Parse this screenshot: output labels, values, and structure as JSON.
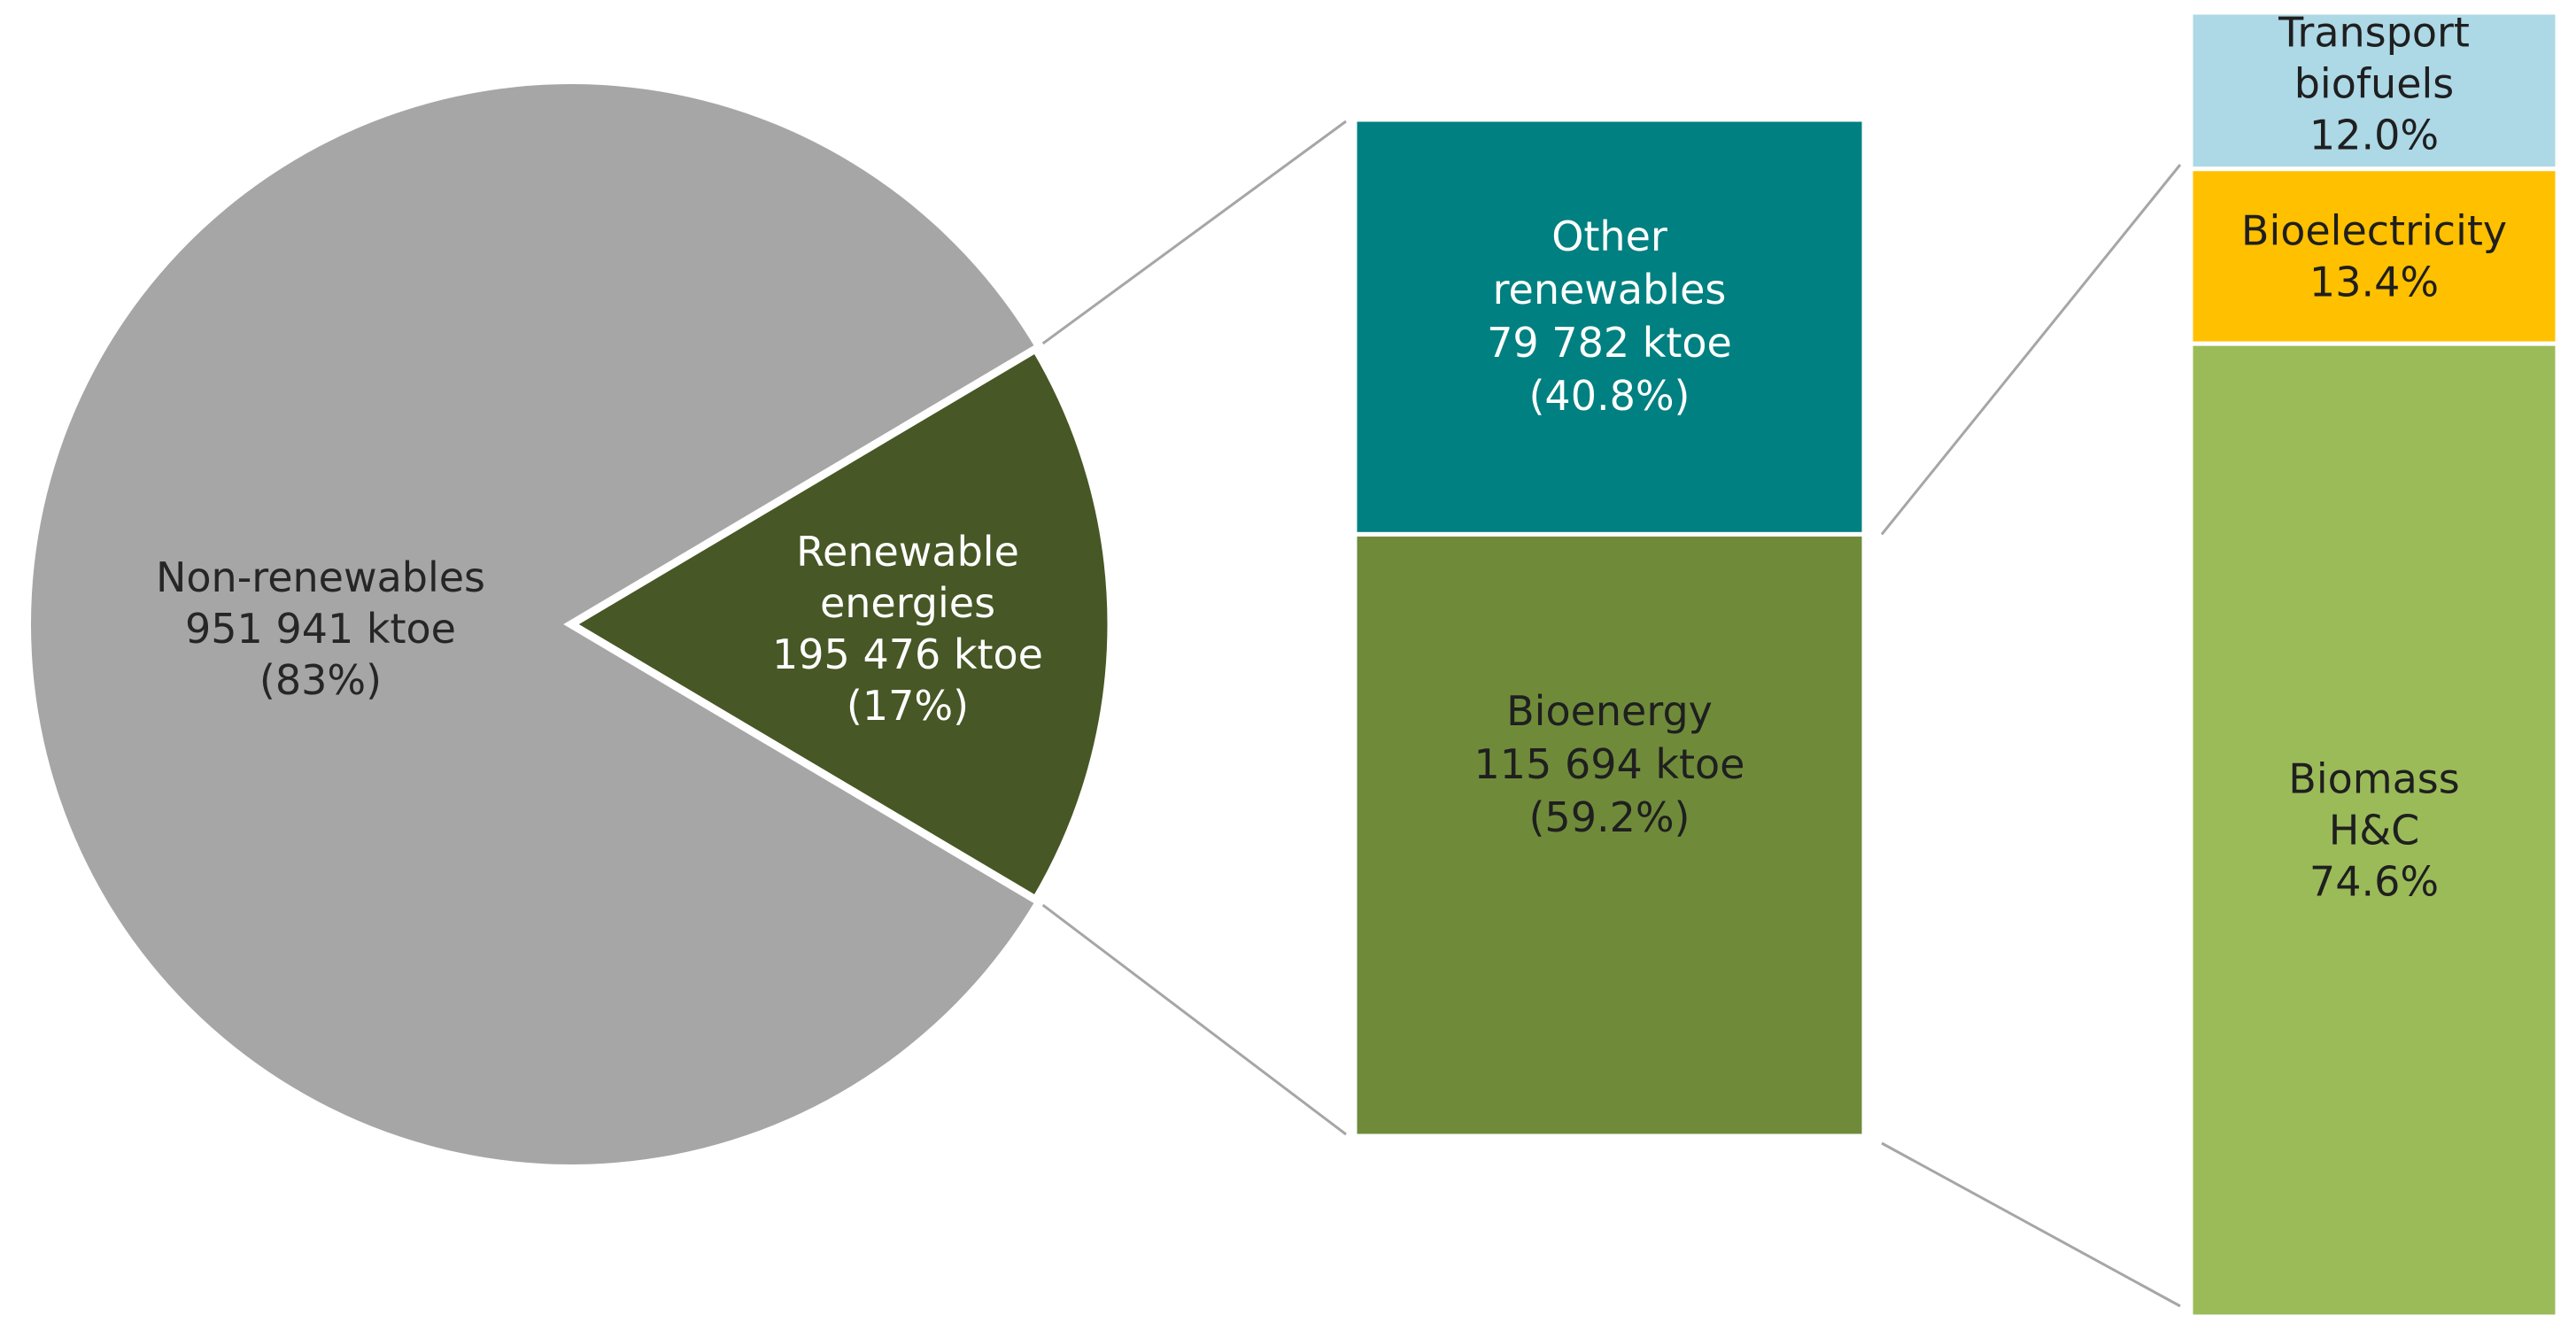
{
  "chart_data": [
    {
      "type": "pie",
      "unit": "ktoe",
      "slices": [
        {
          "label": "Non-renewables",
          "value": 951941,
          "value_text": "951 941 ktoe",
          "percent_text": "(83%)",
          "color": "#a6a6a6",
          "text_color": "#262626"
        },
        {
          "label": "Renewable energies",
          "label_lines": [
            "Renewable",
            "energies"
          ],
          "value": 195476,
          "value_text": "195 476 ktoe",
          "percent_text": "(17%)",
          "color": "#475725",
          "text_color": "#ffffff"
        }
      ]
    },
    {
      "type": "bar",
      "stacked": true,
      "unit": "ktoe",
      "segments": [
        {
          "label": "Other renewables",
          "label_lines": [
            "Other",
            "renewables"
          ],
          "value": 79782,
          "value_text": "79 782 ktoe",
          "percent": 40.8,
          "percent_text": "(40.8%)",
          "color": "#008080",
          "text_color": "#ffffff"
        },
        {
          "label": "Bioenergy",
          "label_lines": [
            "Bioenergy"
          ],
          "value": 115694,
          "value_text": "115 694 ktoe",
          "percent": 59.2,
          "percent_text": "(59.2%)",
          "color": "#6f8b3a",
          "text_color": "#1f1f1f"
        }
      ]
    },
    {
      "type": "bar",
      "stacked": true,
      "unit": "%",
      "segments": [
        {
          "label": "Transport biofuels",
          "label_lines": [
            "Transport",
            "biofuels"
          ],
          "percent": 12.0,
          "percent_text": "12.0%",
          "color": "#add8e6",
          "text_color": "#1f1f1f"
        },
        {
          "label": "Bioelectricity",
          "label_lines": [
            "Bioelectricity"
          ],
          "percent": 13.4,
          "percent_text": "13.4%",
          "color": "#ffc000",
          "text_color": "#1f1f1f"
        },
        {
          "label": "Biomass H&C",
          "label_lines": [
            "Biomass",
            "H&C"
          ],
          "percent": 74.6,
          "percent_text": "74.6%",
          "color": "#9bbb59",
          "text_color": "#1f1f1f"
        }
      ]
    }
  ],
  "connector_color": "#a6a6a6"
}
